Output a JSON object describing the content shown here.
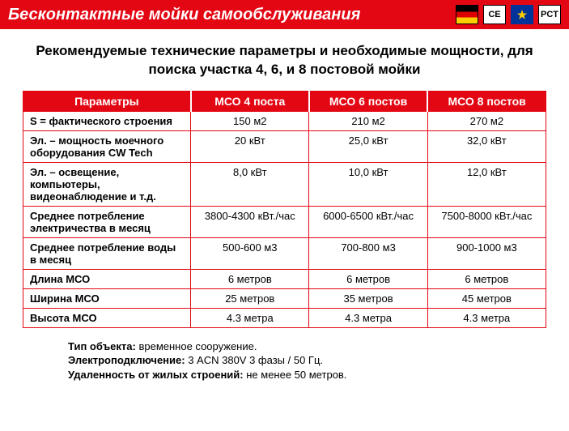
{
  "banner": {
    "title": "Бесконтактные мойки самообслуживания",
    "certs": [
      "flag",
      "CE",
      "eu",
      "PCT"
    ]
  },
  "headline": "Рекомендуемые технические параметры и необходимые мощности, для поиска участка 4, 6, и 8 постовой мойки",
  "table": {
    "headers": [
      "Параметры",
      "МСО 4 поста",
      "МСО 6 постов",
      "МСО 8 постов"
    ],
    "rows": [
      {
        "param": "S = фактического строения",
        "v": [
          "150 м2",
          "210 м2",
          "270 м2"
        ]
      },
      {
        "param": "Эл.  – мощность моечного оборудования CW Tech",
        "v": [
          "20 кВт",
          "25,0 кВт",
          "32,0 кВт"
        ]
      },
      {
        "param": "Эл. – освещение, компьютеры, видеонаблюдение и т.д.",
        "v": [
          "8,0 кВт",
          "10,0 кВт",
          "12,0 кВт"
        ]
      },
      {
        "param": "Среднее потребление электричества в месяц",
        "v": [
          "3800-4300 кВт./час",
          "6000-6500 кВт./час",
          "7500-8000 кВт./час"
        ]
      },
      {
        "param": "Среднее потребление воды в месяц",
        "v": [
          "500-600 м3",
          "700-800 м3",
          "900-1000 м3"
        ]
      },
      {
        "param": "Длина МСО",
        "v": [
          "6 метров",
          "6 метров",
          "6 метров"
        ]
      },
      {
        "param": "Ширина МСО",
        "v": [
          "25 метров",
          "35 метров",
          "45 метров"
        ]
      },
      {
        "param": "Высота МСО",
        "v": [
          "4.3 метра",
          "4.3 метра",
          "4.3 метра"
        ]
      }
    ]
  },
  "notes": [
    {
      "label": "Тип объекта:",
      "text": " временное сооружение."
    },
    {
      "label": "Электроподключение:",
      "text": " 3 ACN 380V 3 фазы / 50 Гц."
    },
    {
      "label": "Удаленность от жилых строений:",
      "text": " не менее 50 метров."
    }
  ],
  "colors": {
    "brand_red": "#e30613",
    "white": "#ffffff",
    "black": "#000000",
    "eu_blue": "#003399",
    "eu_gold": "#ffcc00"
  }
}
